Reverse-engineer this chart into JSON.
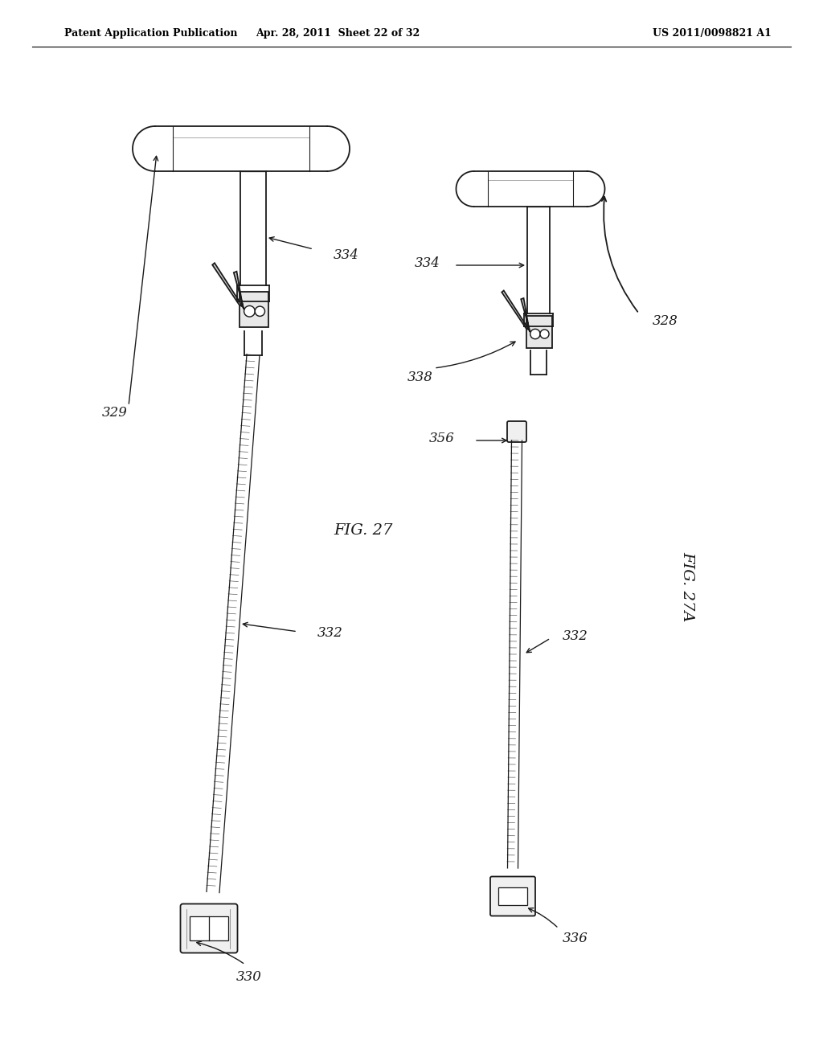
{
  "bg_color": "#ffffff",
  "header_left": "Patent Application Publication",
  "header_mid": "Apr. 28, 2011  Sheet 22 of 32",
  "header_right": "US 2011/0098821 A1",
  "fig_label_27": "FIG. 27",
  "fig_label_27a": "FIG. 27A"
}
